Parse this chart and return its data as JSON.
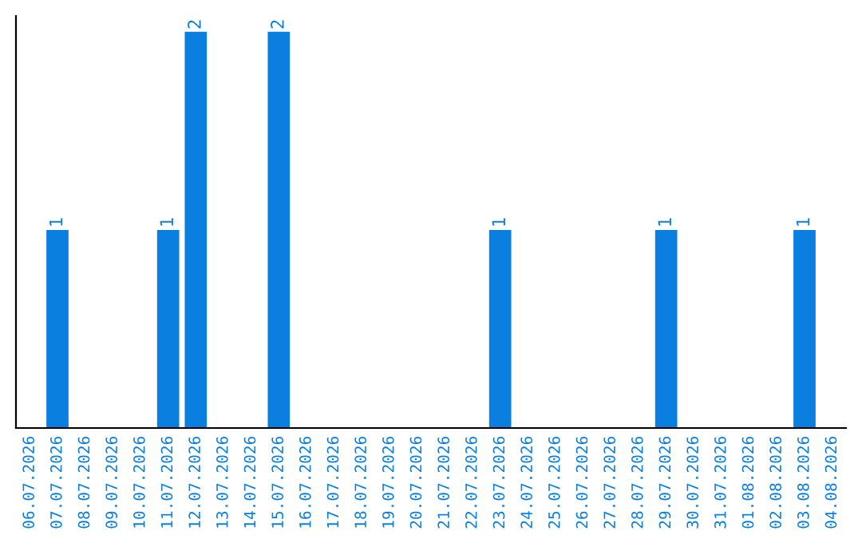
{
  "chart_data": {
    "type": "bar",
    "categories": [
      "06.07.2026",
      "07.07.2026",
      "08.07.2026",
      "09.07.2026",
      "10.07.2026",
      "11.07.2026",
      "12.07.2026",
      "13.07.2026",
      "14.07.2026",
      "15.07.2026",
      "16.07.2026",
      "17.07.2026",
      "18.07.2026",
      "19.07.2026",
      "20.07.2026",
      "21.07.2026",
      "22.07.2026",
      "23.07.2026",
      "24.07.2026",
      "25.07.2026",
      "26.07.2026",
      "27.07.2026",
      "28.07.2026",
      "29.07.2026",
      "30.07.2026",
      "31.07.2026",
      "01.08.2026",
      "02.08.2026",
      "03.08.2026",
      "04.08.2026"
    ],
    "values": [
      0,
      1,
      0,
      0,
      0,
      1,
      2,
      0,
      0,
      2,
      0,
      0,
      0,
      0,
      0,
      0,
      0,
      1,
      0,
      0,
      0,
      0,
      0,
      1,
      0,
      0,
      0,
      0,
      1,
      0
    ],
    "value_labels": [
      null,
      "1",
      null,
      null,
      null,
      "1",
      "2",
      null,
      null,
      "2",
      null,
      null,
      null,
      null,
      null,
      null,
      null,
      "1",
      null,
      null,
      null,
      null,
      null,
      "1",
      null,
      null,
      null,
      null,
      "1",
      null
    ],
    "color": "#0a7fe0",
    "grid": false,
    "legend": false,
    "tick_labels": "x"
  }
}
